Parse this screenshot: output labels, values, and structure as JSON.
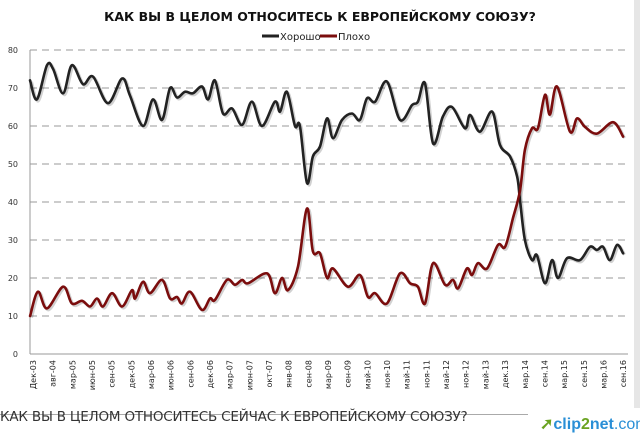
{
  "chart_data": {
    "type": "line",
    "title": "КАК ВЫ В ЦЕЛОМ ОТНОСИТЕСЬ К ЕВРОПЕЙСКОМУ СОЮЗУ?",
    "xlabel": "",
    "ylabel": "",
    "ylim": [
      0,
      80
    ],
    "yticks": [
      "0",
      "10",
      "20",
      "30",
      "40",
      "50",
      "60",
      "70",
      "80"
    ],
    "grid": true,
    "legend_position": "top-center",
    "categories": [
      "Дек-03",
      "авг-04",
      "мар-05",
      "июн-05",
      "сен-05",
      "дек-05",
      "мар-06",
      "июн-06",
      "сен-06",
      "дек-06",
      "мар-07",
      "июн-07",
      "окт-07",
      "янв-08",
      "сен-08",
      "мар-09",
      "сен-09",
      "май-10",
      "ноя-10",
      "май-11",
      "ноя-11",
      "май-12",
      "ноя-12",
      "май-13",
      "дек.13",
      "мар.14",
      "сен.14",
      "мар.15",
      "сен.15",
      "мар.16",
      "сен.16"
    ],
    "x_note": "points are [category_index_position, percent]",
    "series": [
      {
        "name": "Хорошо",
        "color": "#222222",
        "points": [
          [
            -0.15,
            72
          ],
          [
            0.2,
            67
          ],
          [
            0.71,
            76
          ],
          [
            1.02,
            75
          ],
          [
            1.53,
            68.6
          ],
          [
            1.98,
            76
          ],
          [
            2.54,
            71
          ],
          [
            3.05,
            73
          ],
          [
            3.81,
            66
          ],
          [
            4.53,
            72.5
          ],
          [
            4.93,
            68
          ],
          [
            5.59,
            60
          ],
          [
            6.1,
            67
          ],
          [
            6.56,
            61.6
          ],
          [
            6.97,
            70
          ],
          [
            7.32,
            67.5
          ],
          [
            7.73,
            69
          ],
          [
            8.13,
            68.6
          ],
          [
            8.59,
            70.4
          ],
          [
            8.9,
            67
          ],
          [
            9.25,
            72
          ],
          [
            9.66,
            63.3
          ],
          [
            10.12,
            64.6
          ],
          [
            10.63,
            60.3
          ],
          [
            11.13,
            66.4
          ],
          [
            11.64,
            60
          ],
          [
            12.3,
            66.4
          ],
          [
            12.56,
            63.8
          ],
          [
            12.91,
            69
          ],
          [
            13.32,
            60
          ],
          [
            13.57,
            60
          ],
          [
            13.93,
            45
          ],
          [
            14.23,
            52
          ],
          [
            14.59,
            54.6
          ],
          [
            14.95,
            62
          ],
          [
            15.25,
            56.8
          ],
          [
            15.71,
            61.6
          ],
          [
            16.22,
            63.3
          ],
          [
            16.62,
            61.6
          ],
          [
            16.98,
            67.3
          ],
          [
            17.39,
            66.4
          ],
          [
            17.99,
            71.7
          ],
          [
            18.66,
            61.6
          ],
          [
            19.27,
            65.5
          ],
          [
            19.57,
            66.4
          ],
          [
            19.93,
            71.2
          ],
          [
            20.34,
            55.4
          ],
          [
            20.84,
            62.5
          ],
          [
            21.3,
            65
          ],
          [
            21.96,
            59.4
          ],
          [
            22.22,
            62.9
          ],
          [
            22.72,
            58.5
          ],
          [
            23.34,
            63.8
          ],
          [
            23.74,
            55
          ],
          [
            24.25,
            52
          ],
          [
            24.61,
            46.7
          ],
          [
            24.76,
            40.5
          ],
          [
            25.01,
            30
          ],
          [
            25.37,
            24.7
          ],
          [
            25.62,
            26
          ],
          [
            26.03,
            18.6
          ],
          [
            26.39,
            24.7
          ],
          [
            26.69,
            20
          ],
          [
            27.15,
            25.2
          ],
          [
            27.81,
            24.7
          ],
          [
            28.31,
            28.2
          ],
          [
            28.67,
            27.4
          ],
          [
            28.98,
            28.2
          ],
          [
            29.33,
            24.7
          ],
          [
            29.69,
            28.7
          ],
          [
            30,
            26.5
          ]
        ]
      },
      {
        "name": "Плохо",
        "color": "#7b0d0d",
        "points": [
          [
            -0.15,
            10
          ],
          [
            0.25,
            16.4
          ],
          [
            0.71,
            12
          ],
          [
            1.53,
            17.7
          ],
          [
            1.98,
            13.3
          ],
          [
            2.49,
            14
          ],
          [
            2.9,
            12.5
          ],
          [
            3.25,
            14.6
          ],
          [
            3.56,
            12.5
          ],
          [
            4.02,
            16
          ],
          [
            4.53,
            12.5
          ],
          [
            5.03,
            16.8
          ],
          [
            5.19,
            14.6
          ],
          [
            5.59,
            19
          ],
          [
            5.95,
            16
          ],
          [
            6.56,
            19.5
          ],
          [
            6.97,
            14.6
          ],
          [
            7.32,
            15
          ],
          [
            7.57,
            13.3
          ],
          [
            7.98,
            16.4
          ],
          [
            8.59,
            11.6
          ],
          [
            9,
            14.6
          ],
          [
            9.25,
            14.2
          ],
          [
            9.86,
            19.5
          ],
          [
            10.27,
            18.2
          ],
          [
            10.63,
            19.5
          ],
          [
            10.93,
            18.6
          ],
          [
            11.9,
            21.2
          ],
          [
            12.3,
            16
          ],
          [
            12.66,
            20
          ],
          [
            12.96,
            16.8
          ],
          [
            13.47,
            23
          ],
          [
            13.93,
            38.3
          ],
          [
            14.23,
            27
          ],
          [
            14.59,
            26.5
          ],
          [
            14.95,
            20
          ],
          [
            15.25,
            22.5
          ],
          [
            16.01,
            17.7
          ],
          [
            16.62,
            20.8
          ],
          [
            17.03,
            15
          ],
          [
            17.39,
            16
          ],
          [
            17.99,
            13.3
          ],
          [
            18.66,
            21.2
          ],
          [
            19.17,
            18.6
          ],
          [
            19.57,
            17.7
          ],
          [
            19.93,
            13.3
          ],
          [
            20.34,
            23.9
          ],
          [
            20.95,
            18.2
          ],
          [
            21.35,
            19.5
          ],
          [
            21.61,
            17.3
          ],
          [
            22.06,
            22.5
          ],
          [
            22.32,
            20.8
          ],
          [
            22.62,
            23.9
          ],
          [
            23.08,
            22.5
          ],
          [
            23.64,
            28.7
          ],
          [
            24,
            28.2
          ],
          [
            24.4,
            35.7
          ],
          [
            24.76,
            43
          ],
          [
            25.01,
            53.7
          ],
          [
            25.37,
            59.4
          ],
          [
            25.67,
            59.4
          ],
          [
            26.03,
            68.2
          ],
          [
            26.28,
            63
          ],
          [
            26.64,
            70.4
          ],
          [
            27.3,
            58.5
          ],
          [
            27.66,
            62
          ],
          [
            28.06,
            59.8
          ],
          [
            28.67,
            58
          ],
          [
            29.49,
            61
          ],
          [
            30,
            57.2
          ]
        ]
      }
    ]
  },
  "caption": "КАК ВЫ В ЦЕЛОМ ОТНОСИТЕСЬ СЕЙЧАС К ЕВРОПЕЙСКОМУ СОЮЗУ?",
  "logo": {
    "part1": "clip",
    "part2": "2",
    "part3": "net",
    "part4": ".com"
  }
}
